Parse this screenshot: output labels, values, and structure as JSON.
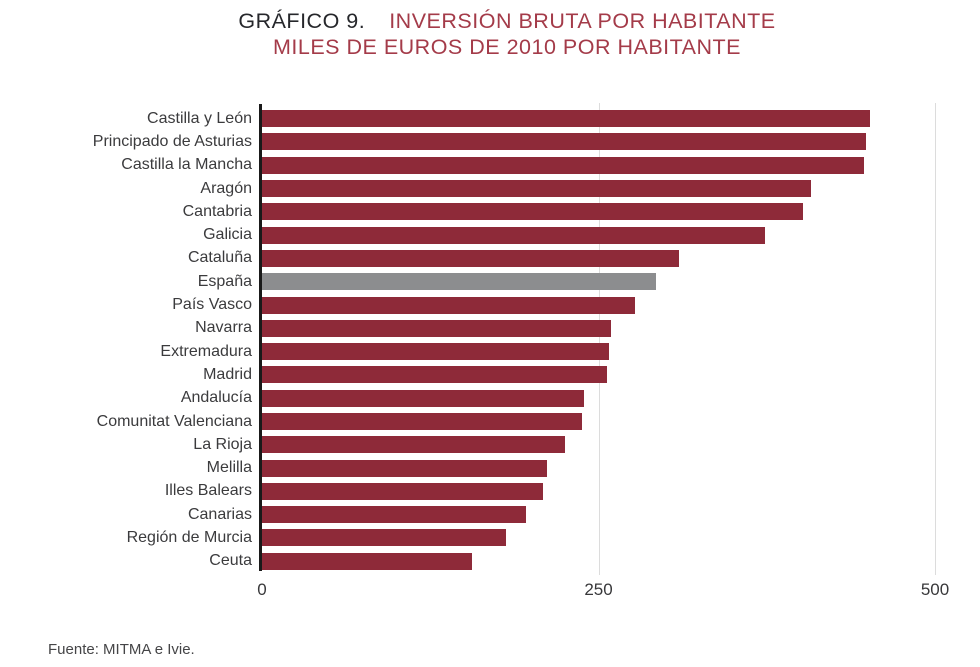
{
  "title": {
    "prefix": "GRÁFICO 9.",
    "line1": "INVERSIÓN BRUTA POR HABITANTE",
    "line2": "MILES DE EUROS DE 2010 POR HABITANTE"
  },
  "source": "Fuente: MITMA e Ivie.",
  "colors": {
    "bar": "#8e2a39",
    "highlight": "#8c8d8f",
    "title_accent": "#a43b49",
    "title_dark": "#26272b",
    "label": "#3b3b3d",
    "gridline": "#dcdcdc",
    "axis": "#1a1a1a"
  },
  "chart_data": {
    "type": "bar",
    "orientation": "horizontal",
    "title": "GRÁFICO 9. INVERSIÓN BRUTA POR HABITANTE",
    "subtitle": "MILES DE EUROS DE 2010 POR HABITANTE",
    "categories": [
      "Castilla y León",
      "Principado de Asturias",
      "Castilla la Mancha",
      "Aragón",
      "Cantabria",
      "Galicia",
      "Cataluña",
      "España",
      "País Vasco",
      "Navarra",
      "Extremadura",
      "Madrid",
      "Andalucía",
      "Comunitat Valenciana",
      "La Rioja",
      "Melilla",
      "Illes Balears",
      "Canarias",
      "Región de Murcia",
      "Ceuta"
    ],
    "values": [
      452,
      449,
      447,
      408,
      402,
      374,
      310,
      293,
      277,
      259,
      258,
      256,
      239,
      238,
      225,
      212,
      209,
      196,
      181,
      156
    ],
    "highlight_category": "España",
    "xlabel": "",
    "ylabel": "",
    "xlim": [
      0,
      500
    ],
    "xticks": [
      0,
      250,
      500
    ],
    "grid": "vertical-at-ticks",
    "legend": false
  }
}
